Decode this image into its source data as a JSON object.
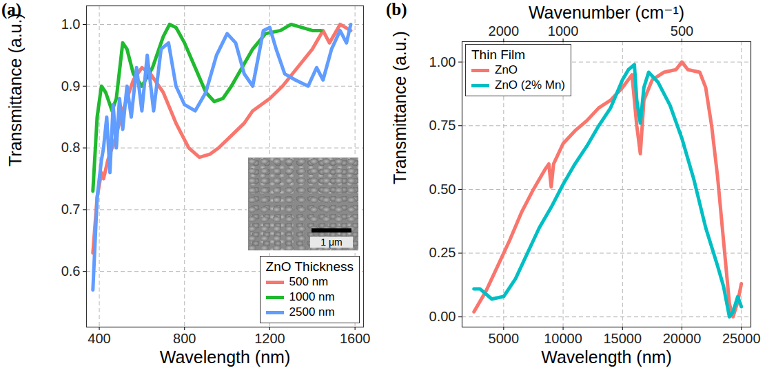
{
  "chart_data": [
    {
      "type": "line",
      "panel_label": "(a)",
      "x_label": "Wavelength (nm)",
      "y_label": "Transmittance (a.u.)",
      "xlim": [
        340,
        1640
      ],
      "ylim": [
        0.51,
        1.03
      ],
      "xticks": [
        400,
        800,
        1200,
        1600
      ],
      "yticks": [
        0.6,
        0.7,
        0.8,
        0.9,
        {
          "value": 1,
          "label": "1.0"
        }
      ],
      "grid": true,
      "legend": "bottom-right",
      "legend_title": "ZnO Thickness",
      "inset_scale_label": "1 μm",
      "series": [
        {
          "name": "500 nm",
          "color": "#F8766D",
          "x": [
            370,
            390,
            410,
            420,
            440,
            460,
            480,
            500,
            530,
            560,
            600,
            640,
            700,
            760,
            820,
            870,
            920,
            960,
            1020,
            1080,
            1120,
            1200,
            1260,
            1330,
            1400,
            1450,
            1480,
            1530,
            1580
          ],
          "values": [
            0.63,
            0.72,
            0.76,
            0.75,
            0.78,
            0.8,
            0.82,
            0.85,
            0.88,
            0.91,
            0.93,
            0.92,
            0.89,
            0.84,
            0.8,
            0.785,
            0.79,
            0.8,
            0.82,
            0.84,
            0.86,
            0.88,
            0.9,
            0.93,
            0.96,
            0.99,
            0.97,
            1.0,
            0.99
          ]
        },
        {
          "name": "1000 nm",
          "color": "#1FBA2E",
          "x": [
            370,
            390,
            410,
            430,
            460,
            480,
            510,
            530,
            560,
            600,
            650,
            700,
            730,
            760,
            800,
            850,
            900,
            940,
            980,
            1020,
            1070,
            1120,
            1180,
            1250,
            1300,
            1350,
            1400,
            1440
          ],
          "values": [
            0.73,
            0.85,
            0.9,
            0.89,
            0.86,
            0.88,
            0.97,
            0.96,
            0.92,
            0.9,
            0.93,
            0.98,
            1.0,
            0.995,
            0.97,
            0.93,
            0.89,
            0.875,
            0.88,
            0.9,
            0.93,
            0.96,
            0.985,
            0.99,
            1.0,
            0.995,
            0.99,
            0.99
          ]
        },
        {
          "name": "2500 nm",
          "color": "#619CFF",
          "x": [
            370,
            390,
            410,
            420,
            435,
            450,
            465,
            480,
            495,
            510,
            530,
            550,
            575,
            600,
            625,
            655,
            690,
            725,
            760,
            800,
            850,
            900,
            950,
            1000,
            1040,
            1080,
            1120,
            1170,
            1200,
            1230,
            1270,
            1320,
            1380,
            1420,
            1450,
            1490,
            1530,
            1560,
            1580
          ],
          "values": [
            0.57,
            0.72,
            0.78,
            0.8,
            0.85,
            0.76,
            0.87,
            0.8,
            0.88,
            0.83,
            0.9,
            0.85,
            0.93,
            0.86,
            0.95,
            0.86,
            0.96,
            0.97,
            0.9,
            0.87,
            0.86,
            0.89,
            0.95,
            0.985,
            0.97,
            0.92,
            0.9,
            0.99,
            0.995,
            0.96,
            0.92,
            0.91,
            0.9,
            0.93,
            0.91,
            0.96,
            0.99,
            0.97,
            1.0
          ]
        }
      ]
    },
    {
      "type": "line",
      "panel_label": "(b)",
      "x_label": "Wavelength (nm)",
      "x2_label": "Wavenumber (cm⁻¹)",
      "y_label": "Transmittance (a.u.)",
      "xlim": [
        1500,
        25800
      ],
      "ylim": [
        -0.04,
        1.08
      ],
      "xticks": [
        5000,
        10000,
        15000,
        20000,
        25000
      ],
      "x2ticks": [
        {
          "value": 5000,
          "label": "2000"
        },
        {
          "value": 10000,
          "label": "1000"
        },
        {
          "value": 20000,
          "label": "500"
        }
      ],
      "yticks": [
        {
          "value": 0,
          "label": "0.00"
        },
        0.25,
        {
          "value": 0.5,
          "label": "0.50"
        },
        0.75,
        {
          "value": 1,
          "label": "1.00"
        }
      ],
      "grid": true,
      "legend": "top-left",
      "legend_title": "Thin Film",
      "series": [
        {
          "name": "ZnO",
          "color": "#F8766D",
          "x": [
            2500,
            3500,
            4500,
            5500,
            6500,
            7500,
            8500,
            8800,
            9000,
            9200,
            10000,
            11000,
            12000,
            13000,
            14000,
            15000,
            15800,
            16200,
            16500,
            16800,
            17500,
            18500,
            19500,
            20000,
            20500,
            21500,
            22000,
            22500,
            23000,
            23500,
            24000,
            24300,
            24700,
            25000
          ],
          "values": [
            0.02,
            0.1,
            0.2,
            0.3,
            0.41,
            0.5,
            0.58,
            0.6,
            0.51,
            0.6,
            0.68,
            0.73,
            0.77,
            0.82,
            0.85,
            0.9,
            0.95,
            0.75,
            0.64,
            0.85,
            0.93,
            0.96,
            0.97,
            1.0,
            0.97,
            0.96,
            0.9,
            0.75,
            0.55,
            0.3,
            0.05,
            0.0,
            0.06,
            0.13
          ]
        },
        {
          "name": "ZnO (2% Mn)",
          "color": "#00BFC4",
          "x": [
            2500,
            3000,
            4000,
            5000,
            6000,
            7000,
            8000,
            9000,
            10000,
            11000,
            12000,
            13000,
            14000,
            15000,
            15500,
            16000,
            16200,
            16500,
            16800,
            17200,
            18000,
            19000,
            20000,
            21000,
            22000,
            23000,
            23500,
            24000,
            24300,
            24700,
            25000
          ],
          "values": [
            0.11,
            0.11,
            0.07,
            0.08,
            0.15,
            0.25,
            0.35,
            0.43,
            0.52,
            0.6,
            0.67,
            0.75,
            0.82,
            0.93,
            0.97,
            0.99,
            0.85,
            0.76,
            0.9,
            0.96,
            0.92,
            0.83,
            0.7,
            0.54,
            0.35,
            0.2,
            0.12,
            0.0,
            0.02,
            0.08,
            0.04
          ]
        }
      ]
    }
  ]
}
